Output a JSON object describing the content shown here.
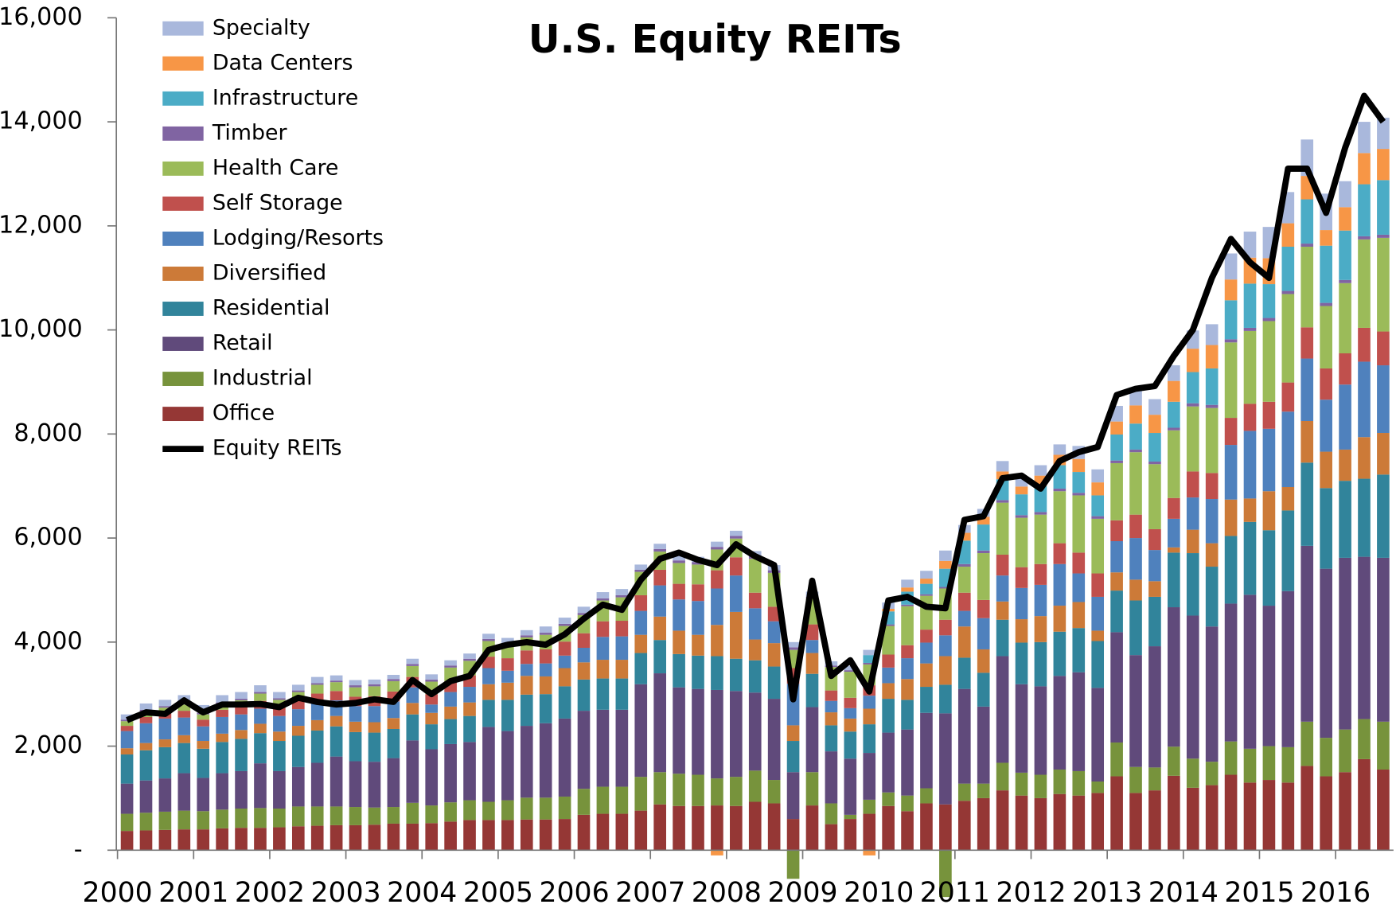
{
  "chart_data": {
    "type": "bar",
    "stacked": true,
    "title": "U.S. Equity REITs",
    "categories": [
      "2000",
      null,
      null,
      null,
      "2001",
      null,
      null,
      null,
      "2002",
      null,
      null,
      null,
      "2003",
      null,
      null,
      null,
      "2004",
      null,
      null,
      null,
      "2005",
      null,
      null,
      null,
      "2006",
      null,
      null,
      null,
      "2007",
      null,
      null,
      null,
      "2008",
      null,
      null,
      null,
      "2009",
      null,
      null,
      null,
      "2010",
      null,
      null,
      null,
      "2011",
      null,
      null,
      null,
      "2012",
      null,
      null,
      null,
      "2013",
      null,
      null,
      null,
      "2014",
      null,
      null,
      null,
      "2015",
      null,
      null,
      null,
      "2016",
      null,
      null
    ],
    "ylim": [
      0,
      16000
    ],
    "yticks": [
      {
        "value": 0,
        "label": "-"
      },
      {
        "value": 2000,
        "label": "2,000"
      },
      {
        "value": 4000,
        "label": "4,000"
      },
      {
        "value": 6000,
        "label": "6,000"
      },
      {
        "value": 8000,
        "label": "8,000"
      },
      {
        "value": 10000,
        "label": "10,000"
      },
      {
        "value": 12000,
        "label": "12,000"
      },
      {
        "value": 14000,
        "label": "14,000"
      },
      {
        "value": 16000,
        "label": "16,000"
      }
    ],
    "grid": false,
    "legend": "upper left",
    "series": [
      {
        "name": "Specialty",
        "color": "#a9b8dc",
        "values": [
          100,
          120,
          120,
          150,
          150,
          140,
          130,
          130,
          120,
          110,
          120,
          100,
          100,
          90,
          80,
          100,
          100,
          100,
          100,
          100,
          100,
          100,
          120,
          120,
          120,
          120,
          120,
          100,
          100,
          100,
          100,
          100,
          100,
          100,
          100,
          100,
          100,
          80,
          80,
          100,
          120,
          150,
          150,
          200,
          150,
          150,
          200,
          200,
          200,
          200,
          250,
          250,
          300,
          300,
          300,
          300,
          350,
          400,
          500,
          500,
          600,
          600,
          700,
          700,
          500,
          600,
          600
        ]
      },
      {
        "name": "Data Centers",
        "color": "#f79646",
        "values": [
          0,
          0,
          0,
          0,
          0,
          0,
          0,
          0,
          0,
          0,
          0,
          0,
          0,
          0,
          0,
          0,
          0,
          0,
          0,
          0,
          0,
          0,
          0,
          0,
          0,
          0,
          0,
          0,
          0,
          0,
          0,
          -100,
          0,
          0,
          0,
          0,
          0,
          0,
          0,
          -100,
          50,
          80,
          100,
          150,
          150,
          150,
          150,
          150,
          200,
          200,
          250,
          250,
          250,
          350,
          350,
          400,
          450,
          450,
          400,
          500,
          500,
          450,
          450,
          300,
          450,
          600,
          600
        ]
      },
      {
        "name": "Infrastructure",
        "color": "#4bacc6",
        "values": [
          0,
          0,
          0,
          0,
          0,
          0,
          0,
          0,
          0,
          0,
          0,
          0,
          0,
          0,
          0,
          0,
          0,
          0,
          0,
          0,
          0,
          0,
          0,
          0,
          0,
          0,
          0,
          0,
          0,
          0,
          0,
          0,
          0,
          0,
          0,
          0,
          0,
          0,
          0,
          150,
          250,
          250,
          200,
          350,
          450,
          500,
          400,
          400,
          500,
          450,
          400,
          400,
          500,
          500,
          550,
          500,
          600,
          700,
          750,
          850,
          650,
          850,
          850,
          1100,
          950,
          1000,
          1050
        ]
      },
      {
        "name": "Timber",
        "color": "#8064a2",
        "values": [
          30,
          30,
          30,
          30,
          30,
          30,
          30,
          30,
          30,
          30,
          30,
          30,
          40,
          40,
          40,
          40,
          40,
          40,
          40,
          40,
          40,
          40,
          40,
          40,
          40,
          40,
          40,
          40,
          50,
          50,
          50,
          50,
          50,
          50,
          50,
          50,
          30,
          30,
          30,
          30,
          30,
          30,
          30,
          30,
          50,
          50,
          50,
          50,
          50,
          50,
          50,
          50,
          50,
          50,
          50,
          50,
          60,
          60,
          60,
          60,
          60,
          60,
          60,
          60,
          60,
          60,
          60
        ]
      },
      {
        "name": "Health Care",
        "color": "#9bbb59",
        "values": [
          90,
          110,
          80,
          120,
          100,
          110,
          120,
          140,
          150,
          160,
          170,
          170,
          180,
          190,
          200,
          210,
          240,
          260,
          280,
          300,
          250,
          250,
          280,
          300,
          350,
          400,
          450,
          450,
          350,
          400,
          380,
          400,
          360,
          650,
          650,
          350,
          500,
          450,
          500,
          400,
          550,
          750,
          650,
          600,
          500,
          900,
          1000,
          950,
          950,
          1000,
          1100,
          1050,
          1100,
          1200,
          1250,
          1300,
          1250,
          1250,
          1450,
          1400,
          1550,
          1700,
          1550,
          1200,
          1350,
          1700,
          1800
        ]
      },
      {
        "name": "Self Storage",
        "color": "#c0504d",
        "values": [
          100,
          120,
          130,
          130,
          130,
          140,
          150,
          150,
          160,
          170,
          180,
          180,
          180,
          190,
          190,
          200,
          200,
          210,
          220,
          220,
          240,
          260,
          270,
          270,
          280,
          300,
          300,
          300,
          300,
          300,
          320,
          350,
          350,
          300,
          280,
          300,
          300,
          200,
          200,
          200,
          250,
          250,
          250,
          300,
          350,
          350,
          400,
          400,
          400,
          400,
          400,
          450,
          400,
          450,
          400,
          400,
          500,
          500,
          520,
          520,
          520,
          560,
          600,
          600,
          600,
          650,
          650
        ]
      },
      {
        "name": "Lodging/Resorts",
        "color": "#4f81bd",
        "values": [
          330,
          380,
          400,
          340,
          280,
          320,
          300,
          290,
          300,
          320,
          330,
          300,
          300,
          310,
          320,
          300,
          160,
          280,
          300,
          310,
          230,
          230,
          250,
          240,
          280,
          440,
          450,
          460,
          600,
          600,
          650,
          700,
          700,
          600,
          420,
          800,
          250,
          220,
          200,
          250,
          300,
          400,
          400,
          400,
          300,
          600,
          500,
          600,
          600,
          800,
          550,
          650,
          600,
          800,
          600,
          550,
          620,
          850,
          1050,
          1300,
          1200,
          1450,
          1200,
          1000,
          1250,
          1450,
          1300
        ]
      },
      {
        "name": "Diversified",
        "color": "#cc7a38",
        "values": [
          120,
          140,
          150,
          150,
          150,
          160,
          170,
          180,
          180,
          190,
          200,
          200,
          200,
          200,
          210,
          220,
          220,
          240,
          260,
          300,
          330,
          360,
          340,
          350,
          330,
          360,
          360,
          350,
          450,
          450,
          400,
          600,
          900,
          400,
          450,
          300,
          400,
          250,
          250,
          300,
          300,
          400,
          450,
          550,
          600,
          450,
          350,
          450,
          500,
          500,
          500,
          200,
          350,
          400,
          300,
          100,
          450,
          450,
          700,
          450,
          750,
          450,
          800,
          700,
          600,
          800,
          800
        ]
      },
      {
        "name": "Residential",
        "color": "#31849b",
        "values": [
          560,
          580,
          600,
          580,
          560,
          600,
          620,
          580,
          580,
          600,
          620,
          580,
          560,
          560,
          560,
          500,
          480,
          480,
          500,
          520,
          600,
          600,
          560,
          620,
          600,
          600,
          600,
          600,
          640,
          640,
          640,
          650,
          620,
          620,
          620,
          600,
          640,
          500,
          520,
          550,
          650,
          570,
          500,
          550,
          600,
          650,
          700,
          800,
          850,
          850,
          850,
          900,
          800,
          1050,
          950,
          1050,
          1200,
          1150,
          1300,
          1400,
          1450,
          1550,
          1600,
          1550,
          1480,
          1500,
          1600
        ]
      },
      {
        "name": "Retail",
        "color": "#604a7b",
        "values": [
          580,
          620,
          640,
          720,
          640,
          700,
          720,
          860,
          720,
          760,
          840,
          960,
          880,
          880,
          940,
          1200,
          1080,
          1120,
          1120,
          1440,
          1330,
          1380,
          1430,
          1500,
          1500,
          1480,
          1480,
          1780,
          1900,
          1660,
          1650,
          1700,
          1650,
          1500,
          1560,
          900,
          1250,
          1000,
          1080,
          900,
          1150,
          1270,
          1450,
          1750,
          1820,
          1480,
          2050,
          1700,
          1700,
          1800,
          1900,
          1800,
          2120,
          2150,
          2330,
          2680,
          2750,
          2600,
          2650,
          2960,
          2700,
          3000,
          3380,
          3250,
          3300,
          3120,
          3150
        ]
      },
      {
        "name": "Industrial",
        "color": "#77933c",
        "values": [
          330,
          340,
          350,
          360,
          350,
          360,
          370,
          380,
          360,
          380,
          370,
          360,
          350,
          330,
          320,
          400,
          340,
          370,
          380,
          350,
          380,
          420,
          420,
          430,
          500,
          520,
          520,
          650,
          620,
          620,
          600,
          520,
          560,
          600,
          450,
          -550,
          640,
          400,
          80,
          270,
          260,
          300,
          290,
          -900,
          330,
          280,
          530,
          440,
          450,
          470,
          470,
          220,
          650,
          500,
          440,
          560,
          560,
          450,
          640,
          650,
          650,
          680,
          850,
          740,
          820,
          770,
          920
        ]
      },
      {
        "name": "Office",
        "color": "#953735",
        "values": [
          370,
          380,
          390,
          400,
          400,
          420,
          430,
          430,
          440,
          460,
          470,
          480,
          480,
          490,
          510,
          510,
          520,
          550,
          580,
          580,
          580,
          590,
          590,
          600,
          680,
          700,
          700,
          760,
          880,
          850,
          850,
          860,
          850,
          930,
          900,
          600,
          860,
          500,
          600,
          700,
          850,
          750,
          900,
          880,
          950,
          1000,
          1150,
          1050,
          1000,
          1080,
          1050,
          1100,
          1420,
          1100,
          1150,
          1430,
          1200,
          1250,
          1450,
          1300,
          1350,
          1300,
          1620,
          1420,
          1500,
          1750,
          1550
        ]
      },
      {
        "name": "Equity REITs",
        "type": "line",
        "color": "#000000",
        "values": [
          2500,
          2650,
          2620,
          2880,
          2650,
          2800,
          2800,
          2810,
          2750,
          2930,
          2850,
          2800,
          2830,
          2900,
          2850,
          3270,
          3000,
          3250,
          3350,
          3850,
          3950,
          4000,
          3950,
          4150,
          4450,
          4720,
          4620,
          5200,
          5600,
          5720,
          5580,
          5480,
          5880,
          5650,
          5480,
          2900,
          5180,
          3350,
          3650,
          3050,
          4800,
          4870,
          4680,
          4650,
          6350,
          6420,
          7150,
          7200,
          6950,
          7480,
          7650,
          7750,
          8750,
          8870,
          8920,
          9500,
          10000,
          11000,
          11750,
          11300,
          11000,
          13100,
          13100,
          12250,
          13500,
          14500,
          14000
        ]
      }
    ]
  }
}
